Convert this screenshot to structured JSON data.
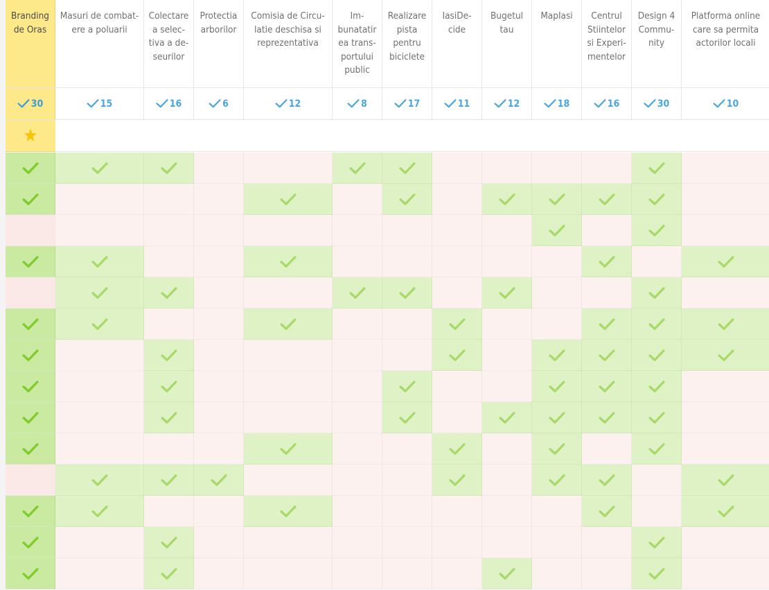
{
  "colors": {
    "accent_yellow": "#fde98a",
    "check_green_first": "#7fcc2c",
    "check_green": "#a9d96a",
    "count_blue": "#4aa7dd",
    "yes_bg": "#dff2c6",
    "no_bg": "#fdf1f0",
    "star": "#f6c400"
  },
  "icons": {
    "count": "checkmark-icon",
    "best": "star-icon",
    "vote": "checkmark-icon"
  },
  "columns": [
    {
      "name": "Branding de Oras",
      "count": "30"
    },
    {
      "name": "Masuri de combat-ere a poluarii",
      "count": "15"
    },
    {
      "name": "Colectare a selec-tiva a de-seurilor",
      "count": "16"
    },
    {
      "name": "Protectia arborilor",
      "count": "6"
    },
    {
      "name": "Comisia de Circu-latie deschisa si reprezentativa",
      "count": "12"
    },
    {
      "name": "Im-bunatatir ea trans-portului public",
      "count": "8"
    },
    {
      "name": "Realizare pista pentru biciclete",
      "count": "17"
    },
    {
      "name": "IasiDe-cide",
      "count": "11"
    },
    {
      "name": "Bugetul tau",
      "count": "12"
    },
    {
      "name": "MapIasi",
      "count": "18"
    },
    {
      "name": "Centrul Stiintelor si Experi-mentelor",
      "count": "16"
    },
    {
      "name": "Design 4 Commu-nity",
      "count": "30"
    },
    {
      "name": "Platforma online care sa permita actorilor locali",
      "count": "10"
    }
  ],
  "votes": [
    [
      1,
      1,
      1,
      0,
      0,
      1,
      1,
      0,
      0,
      0,
      0,
      1,
      0
    ],
    [
      1,
      0,
      0,
      0,
      1,
      0,
      1,
      0,
      1,
      1,
      1,
      1,
      0
    ],
    [
      0,
      0,
      0,
      0,
      0,
      0,
      0,
      0,
      0,
      1,
      0,
      1,
      0
    ],
    [
      1,
      1,
      0,
      0,
      1,
      0,
      0,
      0,
      0,
      0,
      1,
      0,
      1
    ],
    [
      0,
      1,
      1,
      0,
      0,
      1,
      1,
      0,
      1,
      0,
      0,
      1,
      0
    ],
    [
      1,
      1,
      0,
      0,
      1,
      0,
      0,
      1,
      0,
      0,
      1,
      1,
      1
    ],
    [
      1,
      0,
      1,
      0,
      0,
      0,
      0,
      1,
      0,
      1,
      1,
      1,
      1
    ],
    [
      1,
      0,
      1,
      0,
      0,
      0,
      1,
      0,
      0,
      1,
      1,
      1,
      0
    ],
    [
      1,
      0,
      1,
      0,
      0,
      0,
      1,
      0,
      1,
      1,
      1,
      1,
      0
    ],
    [
      1,
      0,
      0,
      0,
      1,
      0,
      0,
      1,
      0,
      1,
      0,
      1,
      0
    ],
    [
      0,
      1,
      1,
      1,
      0,
      0,
      0,
      1,
      0,
      1,
      1,
      0,
      1
    ],
    [
      1,
      1,
      0,
      0,
      1,
      0,
      0,
      0,
      0,
      0,
      1,
      0,
      1
    ],
    [
      1,
      0,
      1,
      0,
      0,
      0,
      0,
      0,
      0,
      0,
      0,
      1,
      0
    ],
    [
      1,
      0,
      1,
      0,
      0,
      0,
      0,
      0,
      1,
      0,
      0,
      1,
      0
    ]
  ]
}
